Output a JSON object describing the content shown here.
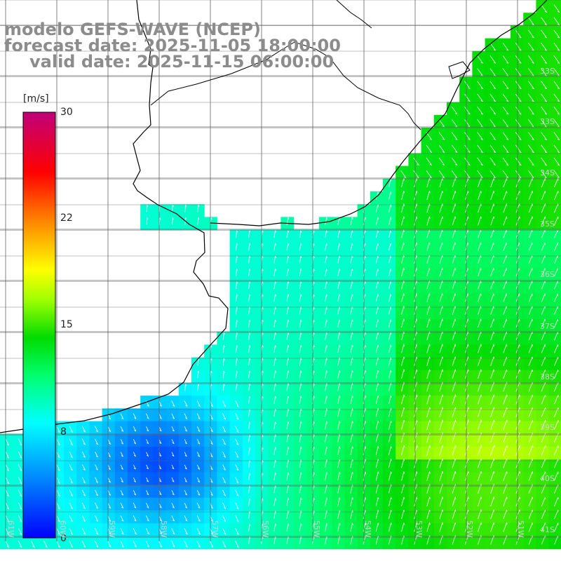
{
  "title": {
    "line1": "modelo GEFS-WAVE (NCEP)",
    "line2": "forecast date: 2025-11-05 18:00:00",
    "line3": "valid date: 2025-11-15 06:00:00"
  },
  "colorbar": {
    "unit": "[m/s]",
    "ticks": [
      "30",
      "22",
      "15",
      "8",
      "0"
    ],
    "tick_values": [
      30,
      22,
      15,
      8,
      0
    ],
    "range": [
      0,
      30
    ],
    "colors": [
      "#0000ff",
      "#00a0ff",
      "#00ffff",
      "#00ff60",
      "#00d800",
      "#80ff00",
      "#ffff00",
      "#ff9000",
      "#ff3000",
      "#ff0000",
      "#c0006a"
    ]
  },
  "lat_labels": [
    "33S",
    "34S",
    "35S",
    "36S",
    "37S",
    "38S",
    "39S",
    "40S",
    "41S"
  ],
  "lon_labels": [
    "61W",
    "60W",
    "59W",
    "58W",
    "57W",
    "56W",
    "55W",
    "54W",
    "53W",
    "52W",
    "51W"
  ],
  "colors": {
    "land": "#ffffff",
    "coast": "#000000",
    "grid": "#646464",
    "title": "#8c8c8c",
    "arrows": "#ffffff"
  }
}
